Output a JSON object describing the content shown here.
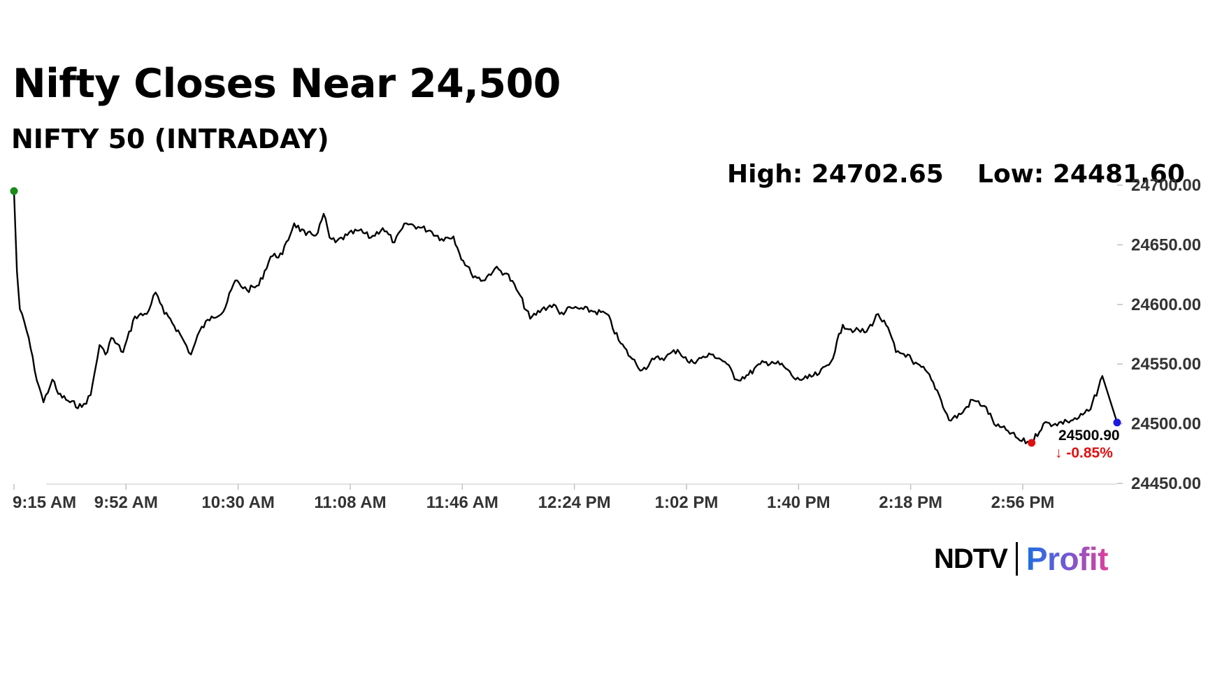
{
  "header": {
    "title": "Nifty Closes Near 24,500",
    "subtitle": "NIFTY 50 (INTRADAY)",
    "high_label": "High: 24702.65",
    "low_label": "Low: 24481.60"
  },
  "brand": {
    "ndtv": "NDTV",
    "profit": "Profit"
  },
  "chart_data": {
    "type": "line",
    "title": "NIFTY 50 (INTRADAY)",
    "xlabel": "",
    "ylabel": "",
    "x_tick_labels": [
      "9:15 AM",
      "9:52 AM",
      "10:30 AM",
      "11:08 AM",
      "11:46 AM",
      "12:24 PM",
      "1:02 PM",
      "1:40 PM",
      "2:18 PM",
      "2:56 PM"
    ],
    "y_tick_labels": [
      "24700.00",
      "24650.00",
      "24600.00",
      "24550.00",
      "24500.00",
      "24450.00"
    ],
    "ylim": [
      24450,
      24700
    ],
    "x": [
      "9:15",
      "9:16",
      "9:17",
      "9:20",
      "9:22",
      "9:25",
      "9:28",
      "9:30",
      "9:34",
      "9:38",
      "9:41",
      "9:44",
      "9:46",
      "9:48",
      "9:52",
      "9:56",
      "10:00",
      "10:03",
      "10:06",
      "10:08",
      "10:12",
      "10:15",
      "10:18",
      "10:22",
      "10:26",
      "10:30",
      "10:34",
      "10:38",
      "10:42",
      "10:46",
      "10:50",
      "10:54",
      "10:58",
      "11:00",
      "11:02",
      "11:04",
      "11:08",
      "11:12",
      "11:16",
      "11:20",
      "11:24",
      "11:28",
      "11:32",
      "11:36",
      "11:40",
      "11:44",
      "11:46",
      "11:50",
      "11:54",
      "11:58",
      "12:02",
      "12:06",
      "12:10",
      "12:14",
      "12:18",
      "12:20",
      "12:24",
      "12:28",
      "12:32",
      "12:36",
      "12:40",
      "12:44",
      "12:48",
      "12:52",
      "12:56",
      "13:00",
      "13:04",
      "13:08",
      "13:12",
      "13:16",
      "13:20",
      "13:24",
      "13:28",
      "13:32",
      "13:36",
      "13:40",
      "13:44",
      "13:48",
      "13:52",
      "13:56",
      "14:00",
      "14:04",
      "14:08",
      "14:12",
      "14:14",
      "14:18",
      "14:20",
      "14:24",
      "14:28",
      "14:32",
      "14:36",
      "14:40",
      "14:44",
      "14:48",
      "14:52",
      "14:56",
      "15:00",
      "15:04",
      "15:08",
      "15:12",
      "15:16",
      "15:20",
      "15:24",
      "15:29"
    ],
    "series": [
      {
        "values": [
          24695,
          24628,
          24596,
          24572,
          24545,
          24518,
          24537,
          24525,
          24518,
          24514,
          24524,
          24566,
          24558,
          24572,
          24560,
          24590,
          24592,
          24610,
          24592,
          24588,
          24572,
          24558,
          24578,
          24590,
          24594,
          24620,
          24612,
          24616,
          24640,
          24642,
          24668,
          24658,
          24660,
          24676,
          24656,
          24652,
          24658,
          24662,
          24656,
          24664,
          24652,
          24668,
          24665,
          24662,
          24655,
          24657,
          24643,
          24626,
          24620,
          24630,
          24626,
          24610,
          24588,
          24596,
          24600,
          24592,
          24597,
          24596,
          24594,
          24592,
          24570,
          24556,
          24545,
          24554,
          24556,
          24562,
          24551,
          24555,
          24558,
          24552,
          24537,
          24541,
          24550,
          24552,
          24548,
          24537,
          24538,
          24542,
          24552,
          24583,
          24578,
          24577,
          24592,
          24576,
          24560,
          24558,
          24550,
          24545,
          24528,
          24503,
          24508,
          24520,
          24515,
          24498,
          24494,
          24486,
          24484,
          24500,
          24500,
          24502,
          24505,
          24512,
          24540,
          24501
        ]
      }
    ],
    "annotations": {
      "last_value": "24500.90",
      "change_pct": "↓ -0.85%"
    },
    "grid": false,
    "legend": "none",
    "colors": {
      "line": "#000000",
      "start_marker": "#1a8a1a",
      "low_marker": "#e01010",
      "end_marker": "#1a1ae0",
      "change_text": "#e01010"
    }
  }
}
